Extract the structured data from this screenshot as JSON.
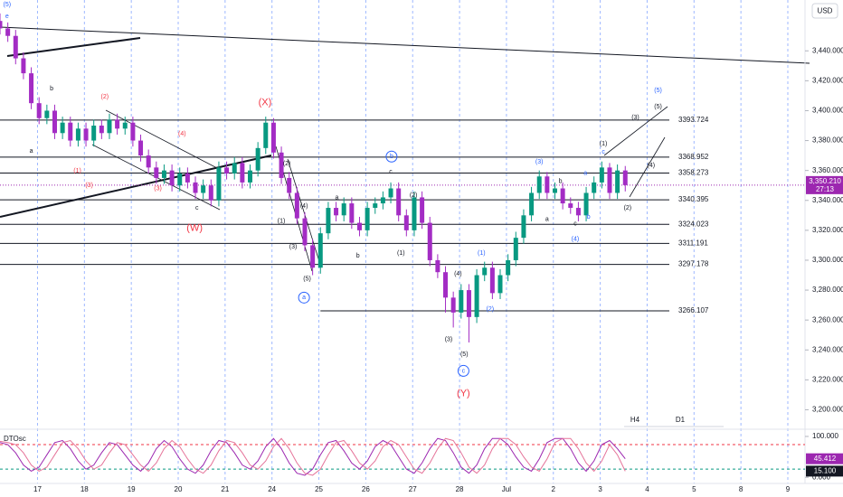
{
  "currency": "USD",
  "timeframes": [
    "H4",
    "D1"
  ],
  "chart_data": [
    {
      "type": "candlestick",
      "x": [
        0,
        1,
        2,
        3,
        4,
        5,
        6,
        7,
        8,
        9,
        10,
        11,
        12,
        13,
        14,
        15,
        16,
        17,
        18,
        19,
        20,
        21,
        22,
        23,
        24,
        25,
        26,
        27,
        28,
        29,
        30,
        31,
        32,
        33,
        34,
        35,
        36,
        37,
        38,
        39,
        40,
        41,
        42,
        43,
        44,
        45,
        46,
        47,
        48,
        49,
        50,
        51,
        52,
        53,
        54,
        55,
        56,
        57,
        58,
        59,
        60,
        61,
        62,
        63,
        64,
        65,
        66,
        67,
        68,
        69,
        70,
        71,
        72,
        73,
        74,
        75,
        76,
        77,
        78,
        79,
        80
      ],
      "open": [
        3460,
        3455,
        3450,
        3435,
        3425,
        3405,
        3395,
        3400,
        3385,
        3392,
        3380,
        3388,
        3380,
        3390,
        3385,
        3394,
        3388,
        3392,
        3380,
        3370,
        3362,
        3355,
        3360,
        3350,
        3358,
        3352,
        3345,
        3350,
        3340,
        3362,
        3358,
        3365,
        3352,
        3360,
        3375,
        3392,
        3372,
        3355,
        3345,
        3328,
        3310,
        3295,
        3318,
        3335,
        3330,
        3338,
        3325,
        3320,
        3335,
        3338,
        3342,
        3348,
        3330,
        3320,
        3342,
        3325,
        3300,
        3292,
        3275,
        3265,
        3280,
        3262,
        3290,
        3295,
        3278,
        3290,
        3300,
        3315,
        3330,
        3345,
        3356,
        3345,
        3348,
        3338,
        3335,
        3330,
        3345,
        3352,
        3362,
        3345,
        3360
      ],
      "high": [
        3465,
        3459,
        3454,
        3439,
        3429,
        3409,
        3404,
        3404,
        3396,
        3396,
        3392,
        3392,
        3394,
        3394,
        3398,
        3398,
        3396,
        3396,
        3384,
        3374,
        3366,
        3364,
        3364,
        3362,
        3362,
        3356,
        3354,
        3354,
        3366,
        3366,
        3369,
        3369,
        3364,
        3379,
        3396,
        3395,
        3376,
        3359,
        3349,
        3332,
        3314,
        3322,
        3339,
        3339,
        3342,
        3342,
        3329,
        3339,
        3342,
        3346,
        3352,
        3352,
        3334,
        3346,
        3346,
        3329,
        3304,
        3296,
        3279,
        3284,
        3284,
        3294,
        3299,
        3299,
        3294,
        3304,
        3319,
        3334,
        3349,
        3360,
        3359,
        3352,
        3352,
        3342,
        3339,
        3349,
        3356,
        3366,
        3365,
        3364,
        3363
      ],
      "low": [
        3451,
        3446,
        3431,
        3421,
        3401,
        3391,
        3391,
        3381,
        3381,
        3376,
        3376,
        3376,
        3376,
        3381,
        3381,
        3384,
        3384,
        3376,
        3366,
        3358,
        3351,
        3351,
        3346,
        3346,
        3348,
        3341,
        3341,
        3336,
        3336,
        3354,
        3354,
        3348,
        3348,
        3356,
        3371,
        3368,
        3351,
        3341,
        3324,
        3306,
        3290,
        3291,
        3314,
        3326,
        3326,
        3321,
        3316,
        3316,
        3331,
        3334,
        3338,
        3326,
        3316,
        3316,
        3321,
        3296,
        3288,
        3265,
        3255,
        3261,
        3245,
        3258,
        3286,
        3274,
        3274,
        3286,
        3296,
        3311,
        3326,
        3341,
        3341,
        3341,
        3334,
        3331,
        3326,
        3326,
        3341,
        3348,
        3341,
        3341,
        3346
      ],
      "close": [
        3455,
        3450,
        3435,
        3425,
        3405,
        3395,
        3400,
        3385,
        3392,
        3380,
        3388,
        3380,
        3390,
        3385,
        3394,
        3388,
        3392,
        3380,
        3370,
        3362,
        3355,
        3360,
        3350,
        3358,
        3352,
        3345,
        3350,
        3340,
        3362,
        3358,
        3365,
        3352,
        3360,
        3375,
        3392,
        3372,
        3355,
        3345,
        3328,
        3310,
        3295,
        3318,
        3335,
        3330,
        3338,
        3325,
        3320,
        3335,
        3338,
        3342,
        3348,
        3330,
        3320,
        3342,
        3325,
        3300,
        3292,
        3275,
        3265,
        3280,
        3262,
        3290,
        3295,
        3278,
        3290,
        3300,
        3315,
        3330,
        3345,
        3356,
        3345,
        3348,
        3338,
        3335,
        3330,
        3345,
        3352,
        3362,
        3345,
        3360,
        3350.21
      ],
      "up_color": "#089981",
      "down_color": "#a32cc4",
      "xlim": [
        0,
        103
      ],
      "xticks": [
        {
          "value": 4.8,
          "label": "17"
        },
        {
          "value": 10.8,
          "label": "18"
        },
        {
          "value": 16.8,
          "label": "19"
        },
        {
          "value": 22.8,
          "label": "20"
        },
        {
          "value": 28.8,
          "label": "21"
        },
        {
          "value": 34.8,
          "label": "24"
        },
        {
          "value": 40.8,
          "label": "25"
        },
        {
          "value": 46.8,
          "label": "26"
        },
        {
          "value": 52.8,
          "label": "27"
        },
        {
          "value": 58.8,
          "label": "28"
        },
        {
          "value": 64.8,
          "label": "Jul"
        },
        {
          "value": 70.8,
          "label": "2"
        },
        {
          "value": 76.8,
          "label": "3"
        },
        {
          "value": 82.8,
          "label": "4"
        },
        {
          "value": 88.8,
          "label": "5"
        },
        {
          "value": 94.8,
          "label": "8"
        },
        {
          "value": 100.8,
          "label": "9"
        }
      ],
      "ylim": [
        3190,
        3474
      ],
      "yticks": [
        {
          "value": 3440,
          "label": "3,440.000"
        },
        {
          "value": 3420,
          "label": "3,420.000"
        },
        {
          "value": 3400,
          "label": "3,400.000"
        },
        {
          "value": 3380,
          "label": "3,380.000"
        },
        {
          "value": 3360,
          "label": "3,360.000"
        },
        {
          "value": 3340,
          "label": "3,340.000"
        },
        {
          "value": 3320,
          "label": "3,320.000"
        },
        {
          "value": 3300,
          "label": "3,300.000"
        },
        {
          "value": 3280,
          "label": "3,280.000"
        },
        {
          "value": 3260,
          "label": "3,260.000"
        },
        {
          "value": 3240,
          "label": "3,240.000"
        },
        {
          "value": 3220,
          "label": "3,220.000"
        },
        {
          "value": 3200,
          "label": "3,200.000"
        }
      ],
      "grid": "x",
      "last_price": {
        "value": 3350.21,
        "label": "3,350.210"
      },
      "last_price_color": "#9c27b0",
      "countdown": "27:13",
      "levels": [
        3393.724,
        3368.952,
        3358.273,
        3340.395,
        3324.023,
        3311.191,
        3297.178,
        3266.107
      ],
      "level_colors": [
        "#131722",
        "#131722",
        "#131722",
        "#131722",
        "#131722",
        "#131722",
        "#f23645",
        "#131722"
      ],
      "level_from": [
        0,
        0,
        0,
        0,
        0,
        0,
        0,
        41
      ],
      "annotations": [
        {
          "text": "(5)",
          "x": 0.9,
          "y": 3470.8,
          "color": "#2962ff"
        },
        {
          "text": "e",
          "x": 0.9,
          "y": 3463,
          "color": "#2962ff"
        },
        {
          "text": "b",
          "x": 6.6,
          "y": 3414.6,
          "color": "#131722"
        },
        {
          "text": "a",
          "x": 4.0,
          "y": 3372.9,
          "color": "#131722"
        },
        {
          "text": "(2)",
          "x": 13.4,
          "y": 3409.2,
          "color": "#f23645"
        },
        {
          "text": "(4)",
          "x": 23.3,
          "y": 3384.4,
          "color": "#f23645"
        },
        {
          "text": "(1)",
          "x": 9.9,
          "y": 3359.6,
          "color": "#f23645"
        },
        {
          "text": "(3)",
          "x": 11.4,
          "y": 3349.9,
          "color": "#f23645"
        },
        {
          "text": "(3)",
          "x": 20.2,
          "y": 3348,
          "color": "#f23645"
        },
        {
          "text": "c",
          "x": 25.2,
          "y": 3334.8,
          "color": "#131722"
        },
        {
          "text": "(W)",
          "x": 24.9,
          "y": 3321.5,
          "color": "#f23645",
          "large": true
        },
        {
          "text": "(X)",
          "x": 33.9,
          "y": 3405.5,
          "color": "#f23645",
          "large": true
        },
        {
          "text": "(2)",
          "x": 36.7,
          "y": 3364.4,
          "color": "#131722"
        },
        {
          "text": "(4)",
          "x": 38.9,
          "y": 3336,
          "color": "#131722"
        },
        {
          "text": "(1)",
          "x": 36,
          "y": 3326.3,
          "color": "#131722"
        },
        {
          "text": "(3)",
          "x": 37.5,
          "y": 3308.8,
          "color": "#131722"
        },
        {
          "text": "(5)",
          "x": 39.3,
          "y": 3287.6,
          "color": "#131722"
        },
        {
          "text": "a",
          "x": 38.9,
          "y": 3275,
          "color": "#2962ff",
          "circled": true
        },
        {
          "text": "a",
          "x": 43.1,
          "y": 3342,
          "color": "#131722"
        },
        {
          "text": "b",
          "x": 45.8,
          "y": 3302.8,
          "color": "#131722"
        },
        {
          "text": "c",
          "x": 50,
          "y": 3359,
          "color": "#131722"
        },
        {
          "text": "b",
          "x": 50.1,
          "y": 3369.3,
          "color": "#2962ff",
          "circled": true
        },
        {
          "text": "(2)",
          "x": 52.9,
          "y": 3343.3,
          "color": "#131722"
        },
        {
          "text": "(1)",
          "x": 51.3,
          "y": 3304.6,
          "color": "#131722"
        },
        {
          "text": "(4)",
          "x": 58.6,
          "y": 3290.7,
          "color": "#131722"
        },
        {
          "text": "(3)",
          "x": 57.4,
          "y": 3247.1,
          "color": "#131722"
        },
        {
          "text": "(5)",
          "x": 59.4,
          "y": 3236.9,
          "color": "#131722"
        },
        {
          "text": "c",
          "x": 59.3,
          "y": 3226,
          "color": "#2962ff",
          "circled": true
        },
        {
          "text": "(Y)",
          "x": 59.3,
          "y": 3210.9,
          "color": "#f23645",
          "large": true
        },
        {
          "text": "(1)",
          "x": 61.6,
          "y": 3304.6,
          "color": "#2962ff"
        },
        {
          "text": "(2)",
          "x": 62.7,
          "y": 3267.1,
          "color": "#2962ff"
        },
        {
          "text": "(3)",
          "x": 69,
          "y": 3365.6,
          "color": "#2962ff"
        },
        {
          "text": "b",
          "x": 71.7,
          "y": 3352.9,
          "color": "#131722"
        },
        {
          "text": "a",
          "x": 70,
          "y": 3327.5,
          "color": "#131722"
        },
        {
          "text": "c",
          "x": 73.6,
          "y": 3324.5,
          "color": "#131722"
        },
        {
          "text": "(4)",
          "x": 73.6,
          "y": 3314.2,
          "color": "#2962ff"
        },
        {
          "text": "a",
          "x": 74.9,
          "y": 3358.3,
          "color": "#2962ff"
        },
        {
          "text": "b",
          "x": 75.3,
          "y": 3328.8,
          "color": "#2962ff"
        },
        {
          "text": "(1)",
          "x": 77.2,
          "y": 3377.7,
          "color": "#131722"
        },
        {
          "text": "c",
          "x": 77.2,
          "y": 3372.3,
          "color": "#2962ff"
        },
        {
          "text": "(3)",
          "x": 81.3,
          "y": 3395.3,
          "color": "#131722"
        },
        {
          "text": "(5)",
          "x": 84.2,
          "y": 3402.5,
          "color": "#131722"
        },
        {
          "text": "(5)",
          "x": 84.2,
          "y": 3413.4,
          "color": "#2962ff"
        },
        {
          "text": "(4)",
          "x": 83.3,
          "y": 3363.2,
          "color": "#131722"
        },
        {
          "text": "(2)",
          "x": 80.3,
          "y": 3334.8,
          "color": "#131722"
        }
      ]
    },
    {
      "type": "line",
      "title": "DTOsc",
      "x": [
        0,
        1,
        2,
        3,
        4,
        5,
        6,
        7,
        8,
        9,
        10,
        11,
        12,
        13,
        14,
        15,
        16,
        17,
        18,
        19,
        20,
        21,
        22,
        23,
        24,
        25,
        26,
        27,
        28,
        29,
        30,
        31,
        32,
        33,
        34,
        35,
        36,
        37,
        38,
        39,
        40,
        41,
        42,
        43,
        44,
        45,
        46,
        47,
        48,
        49,
        50,
        51,
        52,
        53,
        54,
        55,
        56,
        57,
        58,
        59,
        60,
        61,
        62,
        63,
        64,
        65,
        66,
        67,
        68,
        69,
        70,
        71,
        72,
        73,
        74,
        75,
        76,
        77,
        78,
        79,
        80
      ],
      "series": [
        {
          "color": "#9c27b0",
          "end_label": "45.412",
          "values": [
            85,
            80,
            60,
            30,
            15,
            25,
            55,
            85,
            90,
            70,
            40,
            20,
            30,
            60,
            85,
            80,
            55,
            30,
            15,
            35,
            70,
            90,
            75,
            45,
            20,
            10,
            30,
            65,
            90,
            85,
            60,
            30,
            20,
            40,
            75,
            95,
            70,
            35,
            10,
            5,
            20,
            55,
            85,
            90,
            65,
            35,
            20,
            40,
            75,
            90,
            80,
            50,
            20,
            10,
            35,
            70,
            95,
            90,
            60,
            25,
            10,
            30,
            70,
            95,
            95,
            80,
            50,
            25,
            15,
            45,
            85,
            95,
            95,
            70,
            35,
            15,
            40,
            80,
            90,
            70,
            45.412
          ]
        },
        {
          "color": "#e57399",
          "end_label": "15.100",
          "values": [
            88,
            85,
            80,
            60,
            30,
            15,
            25,
            55,
            85,
            90,
            70,
            40,
            20,
            30,
            60,
            85,
            80,
            55,
            30,
            15,
            35,
            70,
            90,
            75,
            45,
            20,
            10,
            30,
            65,
            90,
            85,
            60,
            30,
            20,
            40,
            75,
            95,
            70,
            35,
            10,
            5,
            20,
            55,
            85,
            90,
            65,
            35,
            20,
            40,
            75,
            90,
            80,
            50,
            20,
            10,
            35,
            70,
            95,
            90,
            60,
            25,
            10,
            30,
            70,
            95,
            95,
            80,
            50,
            25,
            15,
            45,
            85,
            95,
            95,
            70,
            35,
            15,
            40,
            80,
            55,
            15.1
          ]
        }
      ],
      "xlim": [
        0,
        103
      ],
      "ylim": [
        -15,
        111
      ],
      "yticks": [
        {
          "value": 100,
          "label": "100.000"
        },
        {
          "value": 0,
          "label": "0.000"
        }
      ],
      "levels": [
        80,
        20
      ],
      "level_colors": [
        "#f23645",
        "#089981"
      ]
    }
  ]
}
